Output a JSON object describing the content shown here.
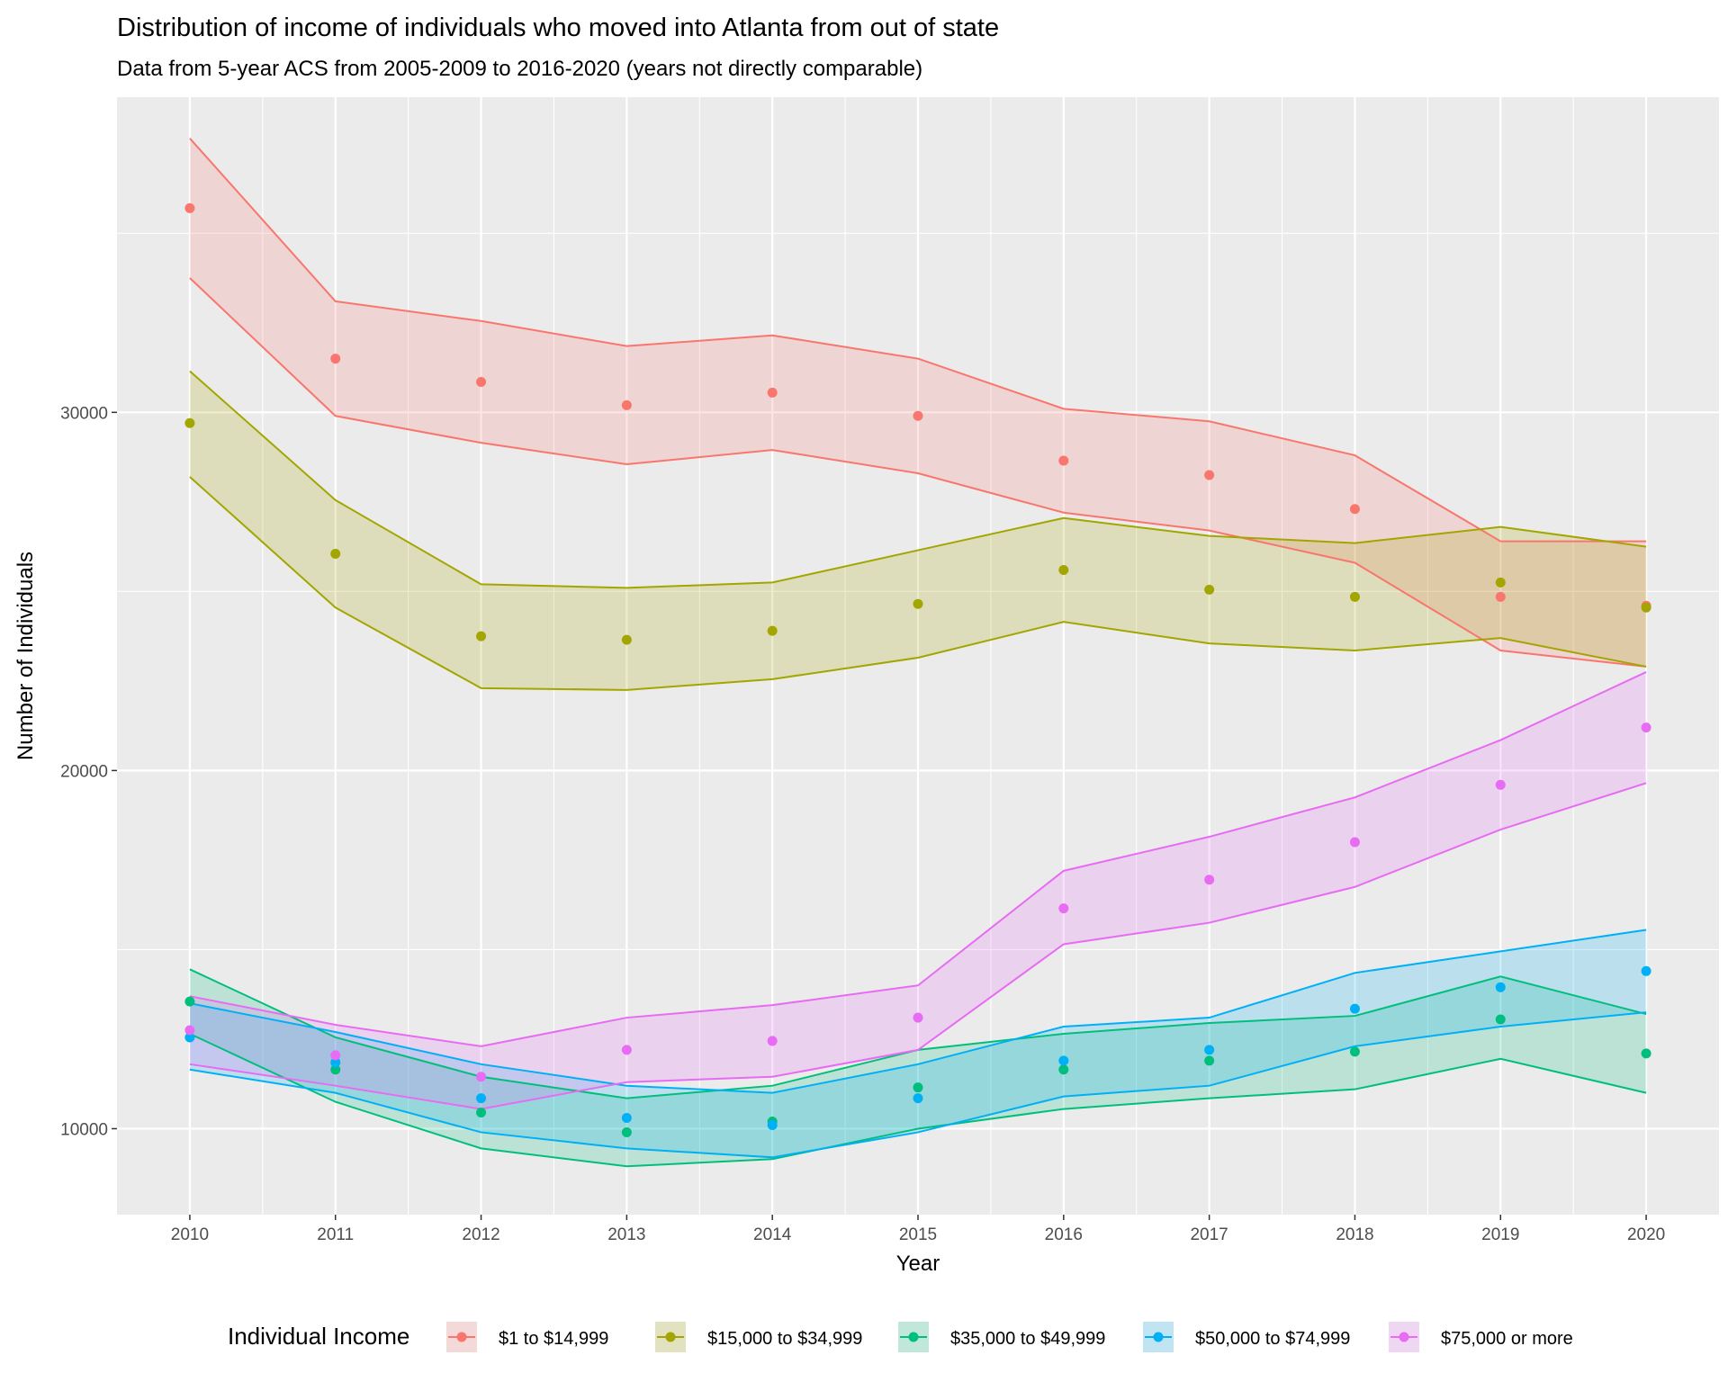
{
  "chart_data": {
    "type": "line",
    "title": "Distribution of income of individuals who moved into Atlanta from out of state",
    "subtitle": "Data from 5-year ACS from 2005-2009 to 2016-2020 (years not directly comparable)",
    "xlabel": "Year",
    "ylabel": "Number of Individuals",
    "x": [
      2010,
      2011,
      2012,
      2013,
      2014,
      2015,
      2016,
      2017,
      2018,
      2019,
      2020
    ],
    "xlim": [
      2009.5,
      2020.5
    ],
    "ylim": [
      7600,
      38800
    ],
    "yticks": [
      10000,
      20000,
      30000
    ],
    "ytick_labels": [
      "10000",
      "20000",
      "30000"
    ],
    "xtick_labels": [
      "2010",
      "2011",
      "2012",
      "2013",
      "2014",
      "2015",
      "2016",
      "2017",
      "2018",
      "2019",
      "2020"
    ],
    "grid": true,
    "legend": {
      "title": "Individual Income",
      "position": "bottom"
    },
    "series": [
      {
        "name": "$1 to $14,999",
        "color": "#F8766D",
        "values": [
          35700,
          31500,
          30850,
          30200,
          30550,
          29900,
          28650,
          28250,
          27300,
          24850,
          24600
        ],
        "upper": [
          37650,
          33100,
          32550,
          31850,
          32150,
          31500,
          30100,
          29750,
          28800,
          26400,
          26400
        ],
        "lower": [
          33750,
          29900,
          29150,
          28550,
          28950,
          28300,
          27200,
          26700,
          25800,
          23350,
          22900
        ]
      },
      {
        "name": "$15,000 to $34,999",
        "color": "#A3A500",
        "values": [
          29700,
          26050,
          23750,
          23650,
          23900,
          24650,
          25600,
          25050,
          24850,
          25250,
          24550
        ],
        "upper": [
          31150,
          27550,
          25200,
          25100,
          25250,
          26150,
          27050,
          26550,
          26350,
          26800,
          26250
        ],
        "lower": [
          28200,
          24550,
          22300,
          22250,
          22550,
          23150,
          24150,
          23550,
          23350,
          23700,
          22900
        ]
      },
      {
        "name": "$35,000 to $49,999",
        "color": "#00BF7D",
        "values": [
          13550,
          11650,
          10450,
          9900,
          10200,
          11150,
          11650,
          11900,
          12150,
          13050,
          12100
        ],
        "upper": [
          14450,
          12550,
          11450,
          10850,
          11200,
          12200,
          12650,
          12950,
          13150,
          14250,
          13200
        ],
        "lower": [
          12650,
          10750,
          9450,
          8950,
          9150,
          10000,
          10550,
          10850,
          11100,
          11950,
          11000
        ]
      },
      {
        "name": "$50,000 to $74,999",
        "color": "#00B0F6",
        "values": [
          12550,
          11850,
          10850,
          10300,
          10100,
          10850,
          11900,
          12200,
          13350,
          13950,
          14400
        ],
        "upper": [
          13500,
          12700,
          11800,
          11200,
          11000,
          11800,
          12850,
          13100,
          14350,
          14950,
          15550
        ],
        "lower": [
          11650,
          11000,
          9900,
          9450,
          9200,
          9900,
          10900,
          11200,
          12300,
          12850,
          13250
        ]
      },
      {
        "name": "$75,000 or more",
        "color": "#E76BF3",
        "values": [
          12750,
          12050,
          11450,
          12200,
          12450,
          13100,
          16150,
          16950,
          18000,
          19600,
          21200
        ],
        "upper": [
          13700,
          12900,
          12300,
          13100,
          13450,
          14000,
          17200,
          18150,
          19250,
          20850,
          22750
        ],
        "lower": [
          11800,
          11200,
          10550,
          11300,
          11450,
          12200,
          15150,
          15750,
          16750,
          18350,
          19650
        ]
      }
    ]
  }
}
